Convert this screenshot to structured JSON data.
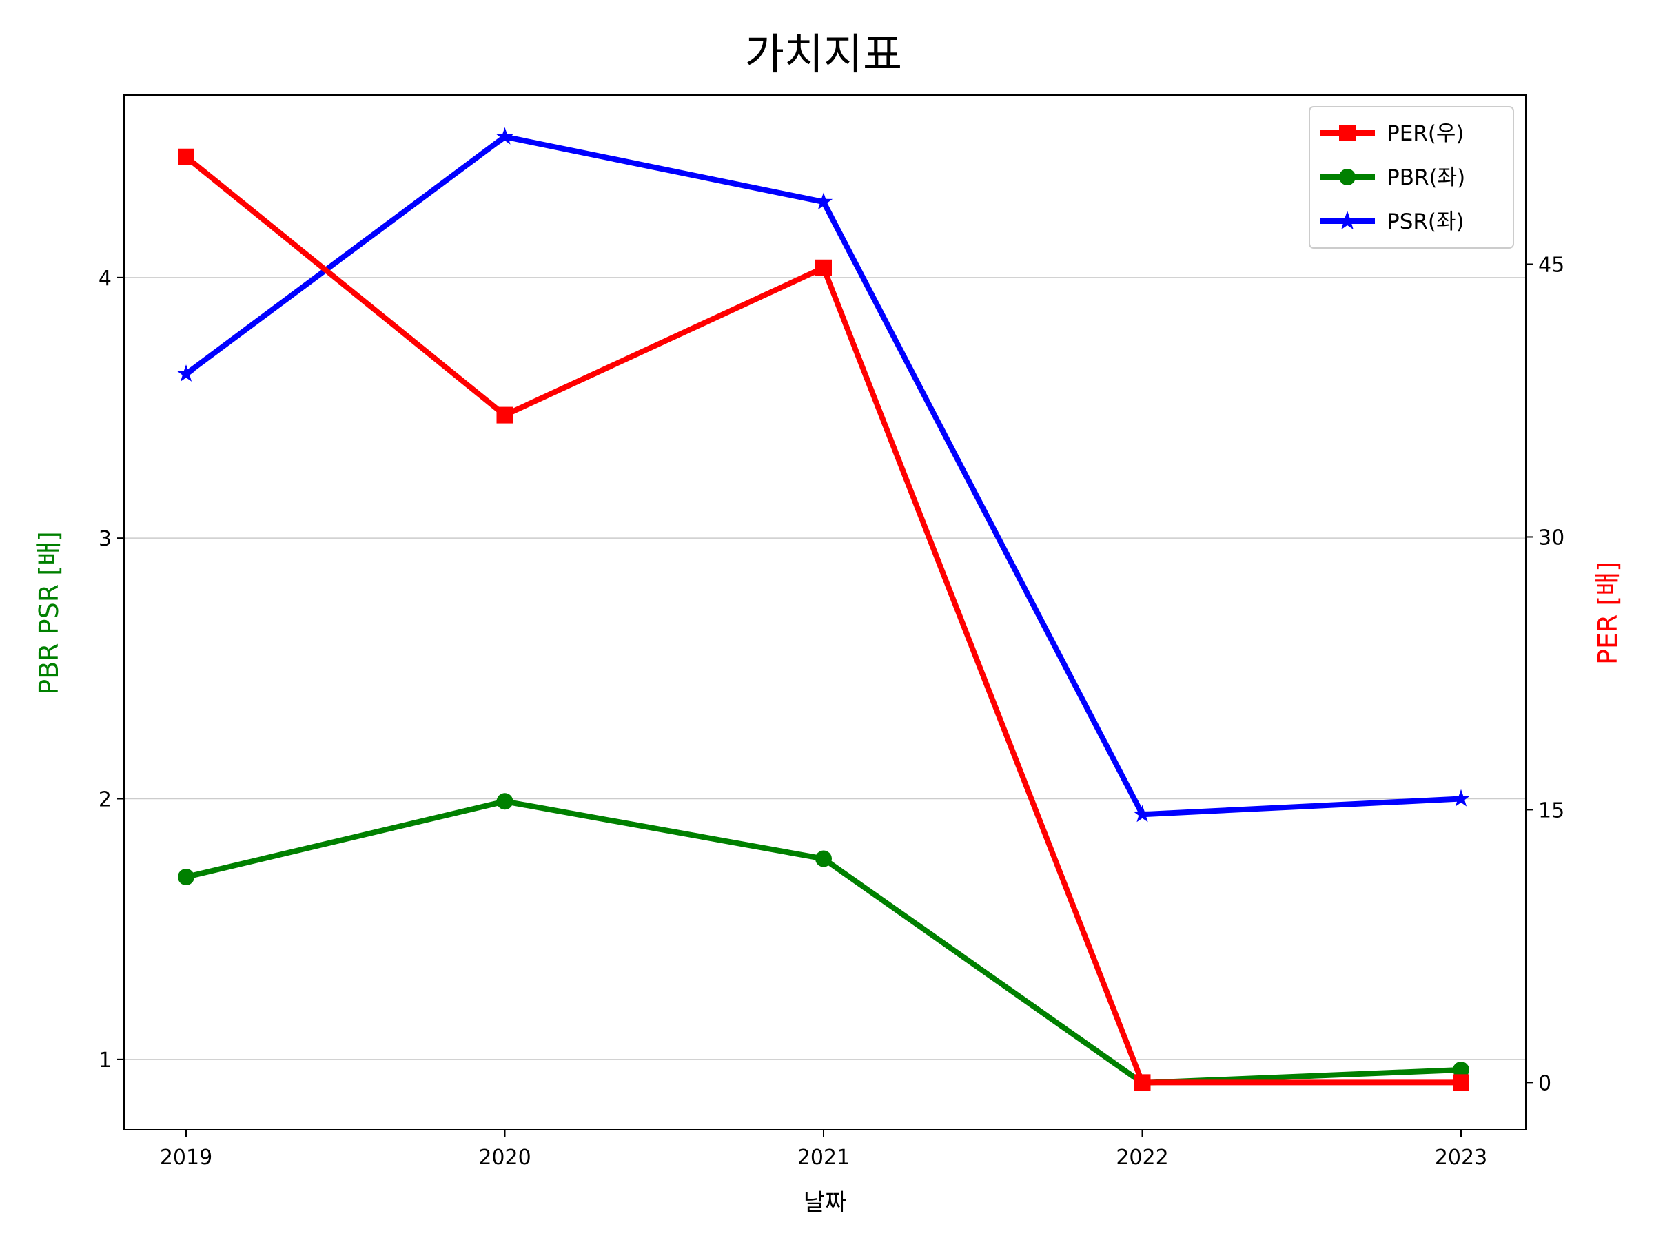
{
  "chart_data": {
    "type": "line",
    "title": "가치지표",
    "xlabel": "날짜",
    "ylabel_left": "PBR PSR [배]",
    "ylabel_right": "PER [배]",
    "categories": [
      "2019",
      "2020",
      "2021",
      "2022",
      "2023"
    ],
    "ylim_left": [
      0.73,
      4.7
    ],
    "ylim_right": [
      -2.6,
      54.3
    ],
    "yticks_left": [
      1,
      2,
      3,
      4
    ],
    "yticks_right": [
      0,
      15,
      30,
      45
    ],
    "grid": "horizontal (left axis)",
    "legend_position": "top-right",
    "series": [
      {
        "name": "PER(우)",
        "axis": "right",
        "color": "#ff0000",
        "marker": "square",
        "values": [
          50.9,
          36.7,
          44.8,
          0.0,
          0.0
        ]
      },
      {
        "name": "PBR(좌)",
        "axis": "left",
        "color": "#008000",
        "marker": "circle",
        "values": [
          1.7,
          1.99,
          1.77,
          0.91,
          0.96
        ]
      },
      {
        "name": "PSR(좌)",
        "axis": "left",
        "color": "#0000ff",
        "marker": "star",
        "values": [
          3.63,
          4.54,
          4.29,
          1.94,
          2.0
        ]
      }
    ]
  }
}
